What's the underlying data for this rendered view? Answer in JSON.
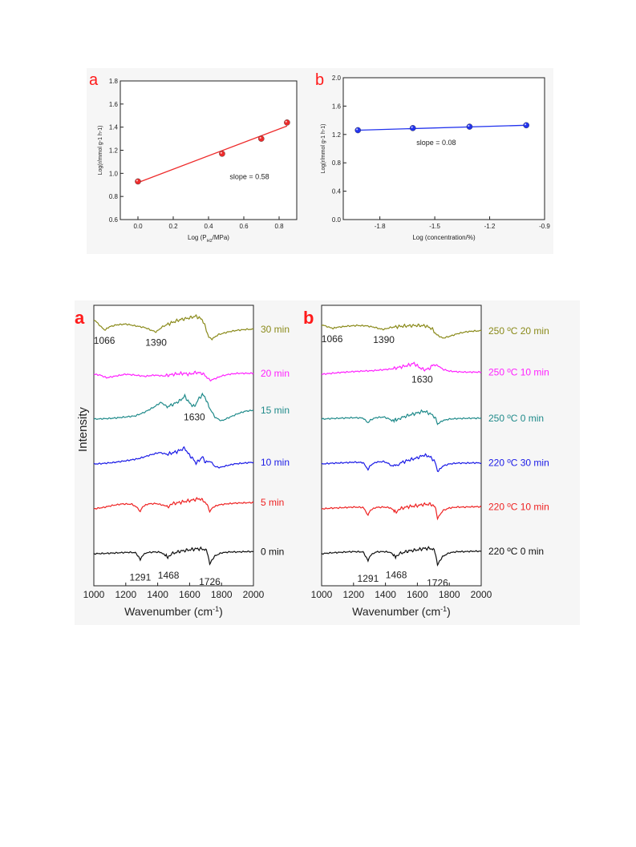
{
  "figure_1": {
    "panel_letters": [
      "a",
      "b"
    ],
    "letter_color": "#ff1a1a"
  },
  "figure_2": {
    "panel_letters": [
      "a",
      "b"
    ],
    "letter_color": "#ff1a1a"
  },
  "chart_data": [
    {
      "id": "top-a",
      "type": "scatter",
      "title": "",
      "xlabel": "Log (P_H2/MPa)",
      "xlabel_main": "Log (P",
      "xlabel_sub": "H2",
      "xlabel_tail": "/MPa)",
      "ylabel": "Log(r/mmol g-1 h-1)",
      "xlim": [
        -0.1,
        0.9
      ],
      "ylim": [
        0.6,
        1.8
      ],
      "xticks": [
        0.0,
        0.2,
        0.4,
        0.6,
        0.8
      ],
      "xtick_labels": [
        "0.0",
        "0.2",
        "0.4",
        "0.6",
        "0.8"
      ],
      "yticks": [
        0.6,
        0.8,
        1.0,
        1.2,
        1.4,
        1.6,
        1.8
      ],
      "ytick_labels": [
        "0.6",
        "0.8",
        "1.0",
        "1.2",
        "1.4",
        "1.6",
        "1.8"
      ],
      "points": [
        {
          "x": 0.0,
          "y": 0.93
        },
        {
          "x": 0.477,
          "y": 1.17
        },
        {
          "x": 0.699,
          "y": 1.3
        },
        {
          "x": 0.845,
          "y": 1.44
        }
      ],
      "fit": {
        "x": [
          0.0,
          0.845
        ],
        "y": [
          0.92,
          1.41
        ]
      },
      "annotation": "slope = 0.58",
      "annotation_at": {
        "x": 0.52,
        "y": 0.95
      },
      "color": "#ee2b2b",
      "grid": false
    },
    {
      "id": "top-b",
      "type": "scatter",
      "title": "",
      "xlabel": "Log (concentration/%)",
      "ylabel": "Log(r/mmol g-1 h-1)",
      "xlim": [
        -2.0,
        -0.9
      ],
      "ylim": [
        0.0,
        2.0
      ],
      "xticks": [
        -1.8,
        -1.5,
        -1.2,
        -0.9
      ],
      "xtick_labels": [
        "-1.8",
        "-1.5",
        "-1.2",
        "-0.9"
      ],
      "yticks": [
        0.0,
        0.4,
        0.8,
        1.2,
        1.6,
        2.0
      ],
      "ytick_labels": [
        "0.0",
        "0.4",
        "0.8",
        "1.2",
        "1.6",
        "2.0"
      ],
      "points": [
        {
          "x": -1.92,
          "y": 1.26
        },
        {
          "x": -1.62,
          "y": 1.29
        },
        {
          "x": -1.31,
          "y": 1.31
        },
        {
          "x": -1.0,
          "y": 1.33
        }
      ],
      "fit": {
        "x": [
          -1.92,
          -1.0
        ],
        "y": [
          1.26,
          1.33
        ]
      },
      "annotation": "slope = 0.08",
      "annotation_at": {
        "x": -1.6,
        "y": 1.05
      },
      "color": "#2233ee",
      "grid": false
    },
    {
      "id": "bottom-a",
      "type": "line",
      "title": "",
      "xlabel": "Wavenumber (cm-1)",
      "xlabel_main": "Wavenumber (cm",
      "xlabel_sup": "-1",
      "xlabel_tail": ")",
      "ylabel": "Intensity",
      "xlim": [
        1000,
        2000
      ],
      "xticks": [
        1000,
        1200,
        1400,
        1600,
        1800,
        2000
      ],
      "xtick_labels": [
        "1000",
        "1200",
        "1400",
        "1600",
        "1800",
        "2000"
      ],
      "series": [
        {
          "name": "0 min",
          "color": "#111111",
          "offset": 0,
          "x": [
            1000,
            1080,
            1150,
            1220,
            1260,
            1280,
            1291,
            1305,
            1330,
            1380,
            1420,
            1440,
            1468,
            1490,
            1540,
            1600,
            1640,
            1680,
            1700,
            1715,
            1726,
            1740,
            1760,
            1800,
            1850,
            1900,
            1950,
            2000
          ],
          "y": [
            0,
            0.02,
            0.05,
            0.08,
            0.06,
            -0.15,
            -0.35,
            -0.1,
            0.06,
            0.1,
            0.08,
            -0.05,
            -0.22,
            0,
            0.14,
            0.22,
            0.28,
            0.27,
            0.22,
            0,
            -0.6,
            -0.35,
            -0.12,
            0.05,
            0.1,
            0.1,
            0.12,
            0.12
          ]
        },
        {
          "name": "5 min",
          "color": "#ee2222",
          "offset": 1,
          "x": [
            1000,
            1060,
            1120,
            1180,
            1240,
            1275,
            1291,
            1305,
            1340,
            1390,
            1430,
            1468,
            1500,
            1560,
            1620,
            1660,
            1690,
            1710,
            1726,
            1745,
            1780,
            1830,
            1880,
            1940,
            2000
          ],
          "y": [
            0,
            0.08,
            0.2,
            0.28,
            0.26,
            0.05,
            -0.15,
            0.12,
            0.28,
            0.3,
            0.22,
            0.12,
            0.3,
            0.4,
            0.5,
            0.58,
            0.45,
            0.2,
            -0.15,
            0.08,
            0.22,
            0.28,
            0.32,
            0.34,
            0.36
          ]
        },
        {
          "name": "10 min",
          "color": "#1a1ae6",
          "offset": 2,
          "x": [
            1000,
            1060,
            1120,
            1200,
            1280,
            1350,
            1410,
            1460,
            1520,
            1570,
            1590,
            1620,
            1640,
            1660,
            1680,
            1700,
            1730,
            1760,
            1790,
            1830,
            1880,
            1940,
            2000
          ],
          "y": [
            0,
            0.03,
            0.08,
            0.18,
            0.3,
            0.5,
            0.65,
            0.55,
            0.7,
            0.9,
            0.6,
            0.3,
            0.05,
            0.2,
            0.4,
            0.1,
            0.15,
            -0.15,
            -0.2,
            -0.1,
            0.0,
            0.05,
            0.1
          ]
        },
        {
          "name": "15 min",
          "color": "#1f8a8a",
          "offset": 3,
          "x": [
            1000,
            1060,
            1120,
            1200,
            1260,
            1320,
            1380,
            1420,
            1460,
            1500,
            1540,
            1570,
            1600,
            1630,
            1650,
            1680,
            1700,
            1720,
            1760,
            1800,
            1850,
            1900,
            1950,
            2000
          ],
          "y": [
            0,
            0.02,
            0.05,
            0.12,
            0.18,
            0.4,
            0.7,
            0.95,
            0.7,
            0.85,
            1.05,
            1.3,
            0.9,
            0.7,
            1.05,
            1.4,
            1.2,
            0.7,
            0.1,
            -0.1,
            0.1,
            0.3,
            0.45,
            0.5
          ]
        },
        {
          "name": "20 min",
          "color": "#ff22ff",
          "offset": 4,
          "x": [
            1000,
            1040,
            1080,
            1140,
            1200,
            1260,
            1320,
            1380,
            1440,
            1500,
            1560,
            1600,
            1640,
            1680,
            1700,
            1730,
            1760,
            1800,
            1850,
            1900,
            1950,
            2000
          ],
          "y": [
            0,
            -0.05,
            -0.2,
            -0.1,
            0,
            -0.05,
            -0.12,
            -0.05,
            -0.1,
            0,
            0.05,
            0.0,
            0.1,
            0.05,
            -0.1,
            -0.35,
            -0.25,
            -0.1,
            0,
            0.05,
            0.05,
            0.05
          ]
        },
        {
          "name": "30 min",
          "color": "#8a8a1a",
          "offset": 5,
          "x": [
            1000,
            1030,
            1066,
            1100,
            1140,
            1200,
            1260,
            1320,
            1360,
            1390,
            1430,
            1480,
            1540,
            1600,
            1640,
            1680,
            1700,
            1720,
            1740,
            1780,
            1840,
            1900,
            1960,
            2000
          ],
          "y": [
            0.55,
            0.3,
            -0.05,
            0.15,
            0.25,
            0.3,
            0.2,
            0.1,
            -0.05,
            -0.15,
            0.15,
            0.35,
            0.55,
            0.65,
            0.75,
            0.55,
            0.1,
            -0.45,
            -0.55,
            -0.3,
            -0.15,
            -0.05,
            0.0,
            0.0
          ]
        }
      ],
      "peak_labels": [
        {
          "text": "1291",
          "x": 1291,
          "series": 0
        },
        {
          "text": "1468",
          "x": 1468,
          "series": 0
        },
        {
          "text": "1726",
          "x": 1726,
          "series": 0
        },
        {
          "text": "1630",
          "x": 1630,
          "series": 3
        },
        {
          "text": "1066",
          "x": 1066,
          "series": 5
        },
        {
          "text": "1390",
          "x": 1390,
          "series": 5
        }
      ],
      "grid": false,
      "legend": "right"
    },
    {
      "id": "bottom-b",
      "type": "line",
      "title": "",
      "xlabel": "Wavenumber (cm-1)",
      "xlabel_main": "Wavenumber (cm",
      "xlabel_sup": "-1",
      "xlabel_tail": ")",
      "ylabel": "",
      "xlim": [
        1000,
        2000
      ],
      "xticks": [
        1000,
        1200,
        1400,
        1600,
        1800,
        2000
      ],
      "xtick_labels": [
        "1000",
        "1200",
        "1400",
        "1600",
        "1800",
        "2000"
      ],
      "series": [
        {
          "name": "220 ºC  0 min",
          "color": "#111111",
          "offset": 0,
          "x": [
            1000,
            1060,
            1120,
            1200,
            1260,
            1280,
            1291,
            1305,
            1340,
            1390,
            1430,
            1450,
            1468,
            1490,
            1540,
            1600,
            1640,
            1680,
            1700,
            1715,
            1726,
            1740,
            1760,
            1800,
            1850,
            1900,
            1950,
            2000
          ],
          "y": [
            0,
            0.05,
            0.08,
            0.12,
            0.1,
            -0.2,
            -0.4,
            -0.1,
            0.1,
            0.12,
            0.08,
            -0.08,
            -0.2,
            0,
            0.15,
            0.22,
            0.3,
            0.3,
            0.25,
            0,
            -0.65,
            -0.4,
            -0.15,
            0.05,
            0.12,
            0.12,
            0.14,
            0.14
          ]
        },
        {
          "name": "220 ºC  10 min",
          "color": "#ee2222",
          "offset": 1,
          "x": [
            1000,
            1060,
            1120,
            1200,
            1260,
            1280,
            1291,
            1305,
            1340,
            1390,
            1430,
            1450,
            1468,
            1490,
            1540,
            1600,
            1640,
            1680,
            1700,
            1715,
            1726,
            1740,
            1760,
            1800,
            1850,
            1900,
            1950,
            2000
          ],
          "y": [
            0,
            0.04,
            0.06,
            0.1,
            0.08,
            -0.18,
            -0.35,
            -0.08,
            0.08,
            0.1,
            0.06,
            -0.08,
            -0.18,
            0,
            0.12,
            0.18,
            0.25,
            0.26,
            0.2,
            0,
            -0.55,
            -0.35,
            -0.1,
            0.05,
            0.1,
            0.1,
            0.12,
            0.12
          ]
        },
        {
          "name": "220 ºC  30 min",
          "color": "#1a1ae6",
          "offset": 2,
          "x": [
            1000,
            1060,
            1120,
            1200,
            1260,
            1280,
            1291,
            1305,
            1340,
            1390,
            1420,
            1440,
            1468,
            1490,
            1540,
            1600,
            1640,
            1670,
            1700,
            1715,
            1726,
            1740,
            1760,
            1800,
            1850,
            1900,
            1950,
            2000
          ],
          "y": [
            0,
            0.04,
            0.06,
            0.1,
            0.08,
            -0.18,
            -0.32,
            -0.08,
            0.1,
            0.14,
            0.02,
            -0.12,
            -0.05,
            0.05,
            0.2,
            0.35,
            0.5,
            0.45,
            0.25,
            0,
            -0.45,
            -0.3,
            -0.12,
            0.0,
            0.05,
            0.05,
            0.06,
            0.06
          ]
        },
        {
          "name": "250 ºC  0 min",
          "color": "#1f8a8a",
          "offset": 3,
          "x": [
            1000,
            1060,
            1120,
            1200,
            1260,
            1280,
            1291,
            1305,
            1340,
            1390,
            1420,
            1440,
            1468,
            1490,
            1540,
            1600,
            1640,
            1670,
            1700,
            1715,
            1726,
            1740,
            1760,
            1800,
            1850,
            1900,
            1950,
            2000
          ],
          "y": [
            0,
            0.03,
            0.05,
            0.08,
            0.06,
            -0.12,
            -0.22,
            -0.05,
            0.08,
            0.12,
            0.02,
            -0.08,
            -0.02,
            0.05,
            0.2,
            0.35,
            0.45,
            0.35,
            0.2,
            0,
            -0.3,
            -0.2,
            -0.08,
            0.0,
            0.03,
            0.04,
            0.05,
            0.05
          ]
        },
        {
          "name": "250 ºC  10 min",
          "color": "#ff22ff",
          "offset": 4,
          "x": [
            1000,
            1060,
            1120,
            1200,
            1260,
            1320,
            1380,
            1440,
            1500,
            1540,
            1580,
            1610,
            1630,
            1650,
            1680,
            1700,
            1730,
            1760,
            1800,
            1850,
            1900,
            1950,
            2000
          ],
          "y": [
            0,
            0.05,
            0.1,
            0.15,
            0.18,
            0.2,
            0.25,
            0.3,
            0.42,
            0.5,
            0.62,
            0.4,
            0.3,
            0.25,
            0.35,
            0.55,
            0.48,
            0.28,
            0.18,
            0.14,
            0.12,
            0.12,
            0.12
          ]
        },
        {
          "name": "250 ºC  20 min",
          "color": "#8a8a1a",
          "offset": 5,
          "x": [
            1000,
            1030,
            1066,
            1100,
            1160,
            1220,
            1280,
            1330,
            1370,
            1390,
            1430,
            1480,
            1540,
            1600,
            1650,
            1690,
            1720,
            1760,
            1800,
            1850,
            1900,
            1950,
            2000
          ],
          "y": [
            0.25,
            0.18,
            0.05,
            0.12,
            0.18,
            0.22,
            0.2,
            0.12,
            0.02,
            0.0,
            0.1,
            0.16,
            0.2,
            0.22,
            0.2,
            0.05,
            -0.3,
            -0.5,
            -0.4,
            -0.25,
            -0.15,
            -0.1,
            -0.08
          ]
        }
      ],
      "peak_labels": [
        {
          "text": "1291",
          "x": 1291,
          "series": 0
        },
        {
          "text": "1468",
          "x": 1468,
          "series": 0
        },
        {
          "text": "1726",
          "x": 1726,
          "series": 0
        },
        {
          "text": "1630",
          "x": 1630,
          "series": 4
        },
        {
          "text": "1066",
          "x": 1066,
          "series": 5
        },
        {
          "text": "1390",
          "x": 1390,
          "series": 5
        }
      ],
      "grid": false,
      "legend": "right"
    }
  ]
}
